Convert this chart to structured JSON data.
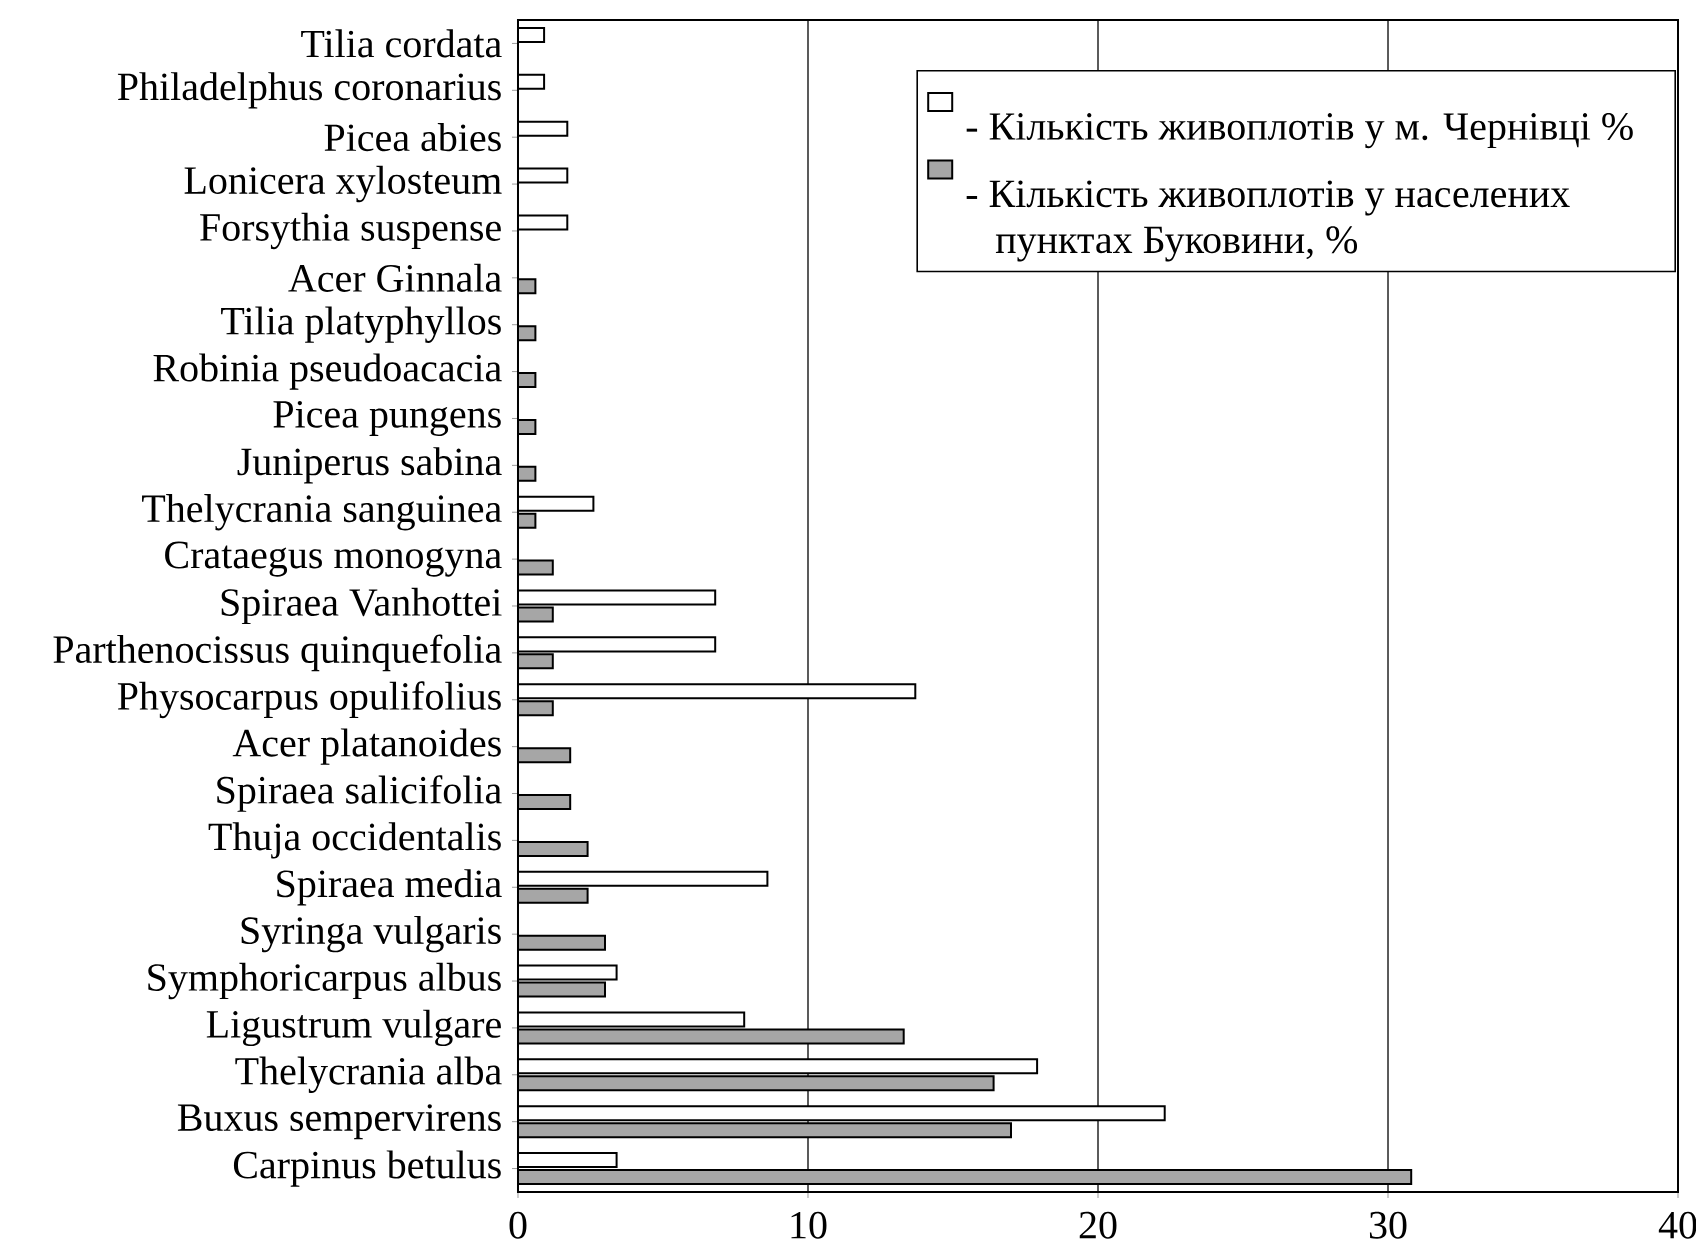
{
  "chart_data": {
    "type": "bar",
    "orientation": "horizontal",
    "categories": [
      "Tilia cordata",
      "Philadelphus coronarius",
      "Picea abies",
      "Lonicera xylosteum",
      "Forsythia suspense",
      "Acer Ginnala",
      "Tilia platyphyllos",
      "Robinia pseudoacacia",
      "Picea pungens",
      "Juniperus sabina",
      "Thelycrania sanguinea",
      "Crataegus monogyna",
      "Spiraea Vanhottei",
      "Parthenocissus quinquefolia",
      "Physocarpus opulifolius",
      "Acer platanoides",
      "Spiraea salicifolia",
      "Thuja occidentalis",
      "Spiraea media",
      "Syringa vulgaris",
      "Symphoricarpus albus",
      "Ligustrum vulgare",
      "Thelycrania alba",
      "Buxus sempervirens",
      "Carpinus betulus"
    ],
    "series": [
      {
        "name": "- Кількість живоплотів у м. Чернівці %",
        "color": "#ffffff",
        "values": [
          0.9,
          0.9,
          1.7,
          1.7,
          1.7,
          null,
          null,
          null,
          null,
          null,
          2.6,
          null,
          6.8,
          6.8,
          13.7,
          null,
          null,
          null,
          8.6,
          null,
          3.4,
          7.8,
          17.9,
          22.3,
          3.4
        ]
      },
      {
        "name": "- Кількість живоплотів   у населених пунктах Буковини, %",
        "color": "#a6a6a6",
        "values": [
          null,
          null,
          null,
          null,
          null,
          0.6,
          0.6,
          0.6,
          0.6,
          0.6,
          0.6,
          1.2,
          1.2,
          1.2,
          1.2,
          1.8,
          1.8,
          2.4,
          2.4,
          3.0,
          3.0,
          13.3,
          16.4,
          17.0,
          30.8
        ]
      }
    ],
    "xlim": [
      0,
      40
    ],
    "xticks": [
      0,
      10,
      20,
      30,
      40
    ],
    "grid": "x",
    "legend": "top right"
  }
}
